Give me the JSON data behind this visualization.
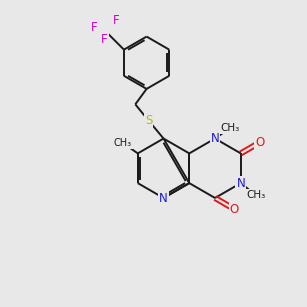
{
  "bg_color": "#e8e8e8",
  "bond_color": "#1a1a1a",
  "nitrogen_color": "#1a1add",
  "oxygen_color": "#dd1a1a",
  "sulfur_color": "#bbbb00",
  "fluorine_color": "#cc00cc",
  "lw": 1.4,
  "figsize": [
    3.0,
    3.0
  ],
  "dpi": 100,
  "xlim": [
    0,
    10
  ],
  "ylim": [
    0,
    10
  ]
}
